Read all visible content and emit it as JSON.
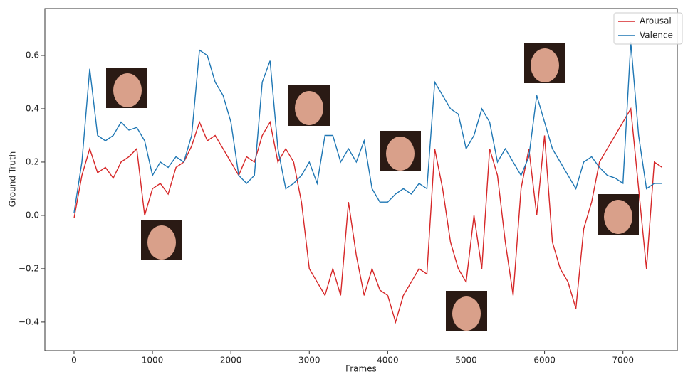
{
  "chart_data": {
    "type": "line",
    "x_label": "Frames",
    "y_label": "Ground Truth",
    "x": [
      0,
      100,
      200,
      300,
      400,
      500,
      600,
      700,
      800,
      900,
      1000,
      1100,
      1200,
      1300,
      1400,
      1500,
      1600,
      1700,
      1800,
      1900,
      2000,
      2100,
      2200,
      2300,
      2400,
      2500,
      2600,
      2700,
      2800,
      2900,
      3000,
      3100,
      3200,
      3300,
      3400,
      3500,
      3600,
      3700,
      3800,
      3900,
      4000,
      4100,
      4200,
      4300,
      4400,
      4500,
      4600,
      4700,
      4800,
      4900,
      5000,
      5100,
      5200,
      5300,
      5400,
      5500,
      5600,
      5700,
      5800,
      5900,
      6000,
      6100,
      6200,
      6300,
      6400,
      6500,
      6600,
      6700,
      6800,
      6900,
      7000,
      7100,
      7200,
      7300,
      7400,
      7500
    ],
    "series": [
      {
        "name": "Arousal",
        "color": "#d62728",
        "values": [
          -0.01,
          0.15,
          0.25,
          0.16,
          0.18,
          0.14,
          0.2,
          0.22,
          0.25,
          0.0,
          0.1,
          0.12,
          0.08,
          0.18,
          0.2,
          0.26,
          0.35,
          0.28,
          0.3,
          0.25,
          0.2,
          0.15,
          0.22,
          0.2,
          0.3,
          0.35,
          0.2,
          0.25,
          0.2,
          0.05,
          -0.2,
          -0.25,
          -0.3,
          -0.2,
          -0.3,
          0.05,
          -0.15,
          -0.3,
          -0.2,
          -0.28,
          -0.3,
          -0.4,
          -0.3,
          -0.25,
          -0.2,
          -0.22,
          0.25,
          0.1,
          -0.1,
          -0.2,
          -0.25,
          0.0,
          -0.2,
          0.25,
          0.15,
          -0.1,
          -0.3,
          0.1,
          0.25,
          0.0,
          0.3,
          -0.1,
          -0.2,
          -0.25,
          -0.35,
          -0.05,
          0.05,
          0.2,
          0.25,
          0.3,
          0.35,
          0.4,
          0.1,
          -0.2,
          0.2,
          0.18
        ]
      },
      {
        "name": "Valence",
        "color": "#1f77b4",
        "values": [
          0.01,
          0.2,
          0.55,
          0.3,
          0.28,
          0.3,
          0.35,
          0.32,
          0.33,
          0.28,
          0.15,
          0.2,
          0.18,
          0.22,
          0.2,
          0.3,
          0.62,
          0.6,
          0.5,
          0.45,
          0.35,
          0.15,
          0.12,
          0.15,
          0.5,
          0.58,
          0.25,
          0.1,
          0.12,
          0.15,
          0.2,
          0.12,
          0.3,
          0.3,
          0.2,
          0.25,
          0.2,
          0.28,
          0.1,
          0.05,
          0.05,
          0.08,
          0.1,
          0.08,
          0.12,
          0.1,
          0.5,
          0.45,
          0.4,
          0.38,
          0.25,
          0.3,
          0.4,
          0.35,
          0.2,
          0.25,
          0.2,
          0.15,
          0.22,
          0.45,
          0.35,
          0.25,
          0.2,
          0.15,
          0.1,
          0.2,
          0.22,
          0.18,
          0.15,
          0.14,
          0.12,
          0.65,
          0.3,
          0.1,
          0.12,
          0.12
        ]
      }
    ],
    "xlim": [
      -372,
      7693
    ],
    "ylim": [
      -0.507,
      0.776
    ],
    "xticks": [
      0,
      1000,
      2000,
      3000,
      4000,
      5000,
      6000,
      7000
    ],
    "yticks": [
      {
        "value": -0.4,
        "label": "−0.4"
      },
      {
        "value": -0.2,
        "label": "−0.2"
      },
      {
        "value": 0,
        "label": "0.0"
      },
      0.2,
      0.4,
      0.6
    ],
    "grid": false,
    "legend": "upper right"
  }
}
